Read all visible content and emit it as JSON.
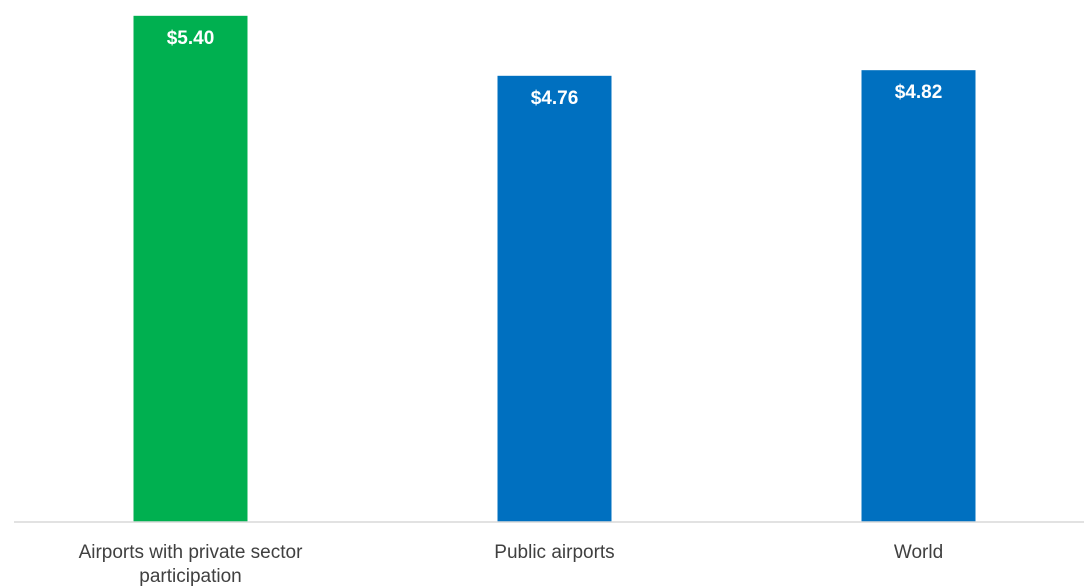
{
  "chart_data": {
    "type": "bar",
    "categories": [
      "Airports with private sector participation",
      "Public airports",
      "World"
    ],
    "values": [
      5.4,
      4.76,
      4.82
    ],
    "value_labels": [
      "$5.40",
      "$4.76",
      "$4.82"
    ],
    "colors": [
      "#00B050",
      "#0070C0",
      "#0070C0"
    ],
    "title": "",
    "xlabel": "",
    "ylabel": "",
    "ylim": [
      0,
      5.43
    ],
    "grid": false,
    "legend": "none"
  }
}
